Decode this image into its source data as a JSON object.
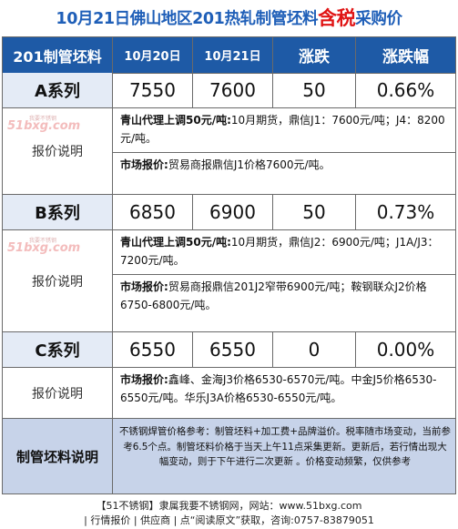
{
  "title": {
    "main": "10月21日佛山地区201热轧制管坯料",
    "highlight": "含税",
    "suffix": "采购价"
  },
  "header": {
    "product": "201制管坯料",
    "date1": "10月20日",
    "date2": "10月21日",
    "change": "涨跌",
    "change_pct": "涨跌幅"
  },
  "watermark": {
    "text": "51bxg.com",
    "sub": "我要不锈钢"
  },
  "rows": [
    {
      "name": "A系列",
      "price1": "7550",
      "price2": "7600",
      "change": "50",
      "pct": "0.66%",
      "desc_label": "报价说明",
      "line1_label": "青山代理上调50元/吨:",
      "line1_text": "10月期货，鼎信J1：7600元/吨；J4：8200元/吨。",
      "line2_label": "市场报价:",
      "line2_text": "贸易商报鼎信J1价格7600元/吨。"
    },
    {
      "name": "B系列",
      "price1": "6850",
      "price2": "6900",
      "change": "50",
      "pct": "0.73%",
      "desc_label": "报价说明",
      "line1_label": "青山代理上调50元/吨:",
      "line1_text": "10月期货，鼎信J2：6900元/吨；J1A/J3：7200元/吨。",
      "line2_label": "市场报价:",
      "line2_text": "贸易商报鼎信201J2窄带6900元/吨；鞍钢联众J2价格6750-6800元/吨。"
    },
    {
      "name": "C系列",
      "price1": "6550",
      "price2": "6550",
      "change": "0",
      "pct": "0.00%",
      "desc_label": "报价说明",
      "line1_label": "市场报价:",
      "line1_text": "鑫峰、金海J3价格6530-6570元/吨。中金J5价格6530-6550元/吨。华乐J3A价格6530-6550元/吨。"
    }
  ],
  "footer": {
    "label": "制管坯料说明",
    "text": "不锈钢焊管价格参考：制管坯料+加工费+品牌溢价。税率随市场变动，当前参考6.5个点。制管坯料价格于当天上午11点采集更新。更新后，若行情出现大幅变动，则于下午进行二次更新 。价格变动频繁，仅供参考"
  },
  "bottom": {
    "line1": "【51不锈钢】隶属我要不锈钢网，网站：www.51bxg.com",
    "line2": "| 行情报价 | 供应商 | 点“阅读原文”获取，咨询:0757-83879051"
  }
}
